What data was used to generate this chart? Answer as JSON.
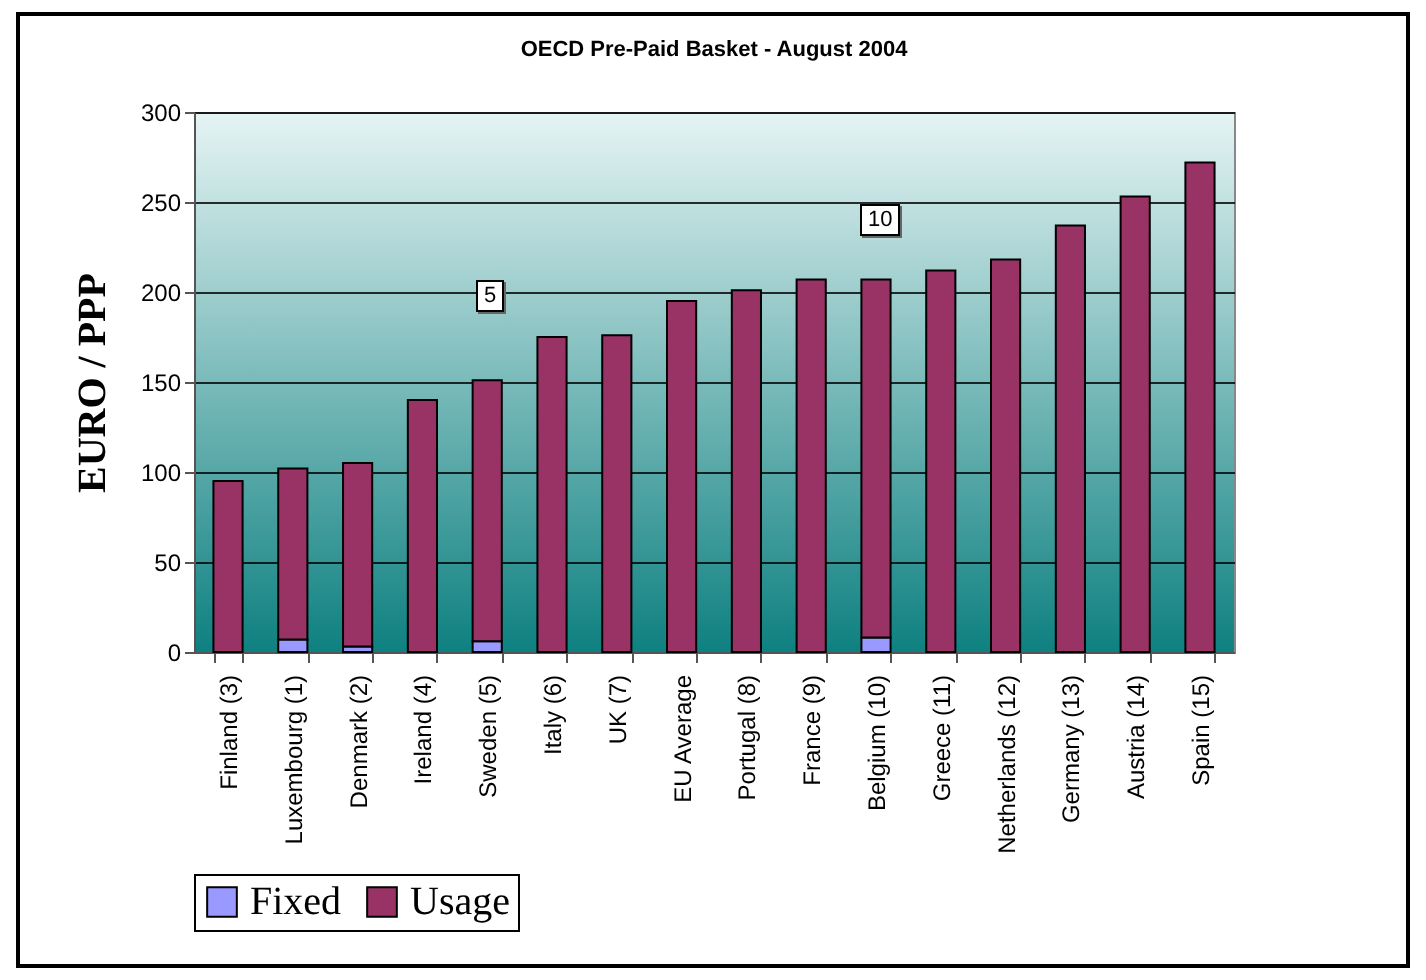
{
  "chart_data": {
    "type": "bar",
    "title": "OECD Pre-Paid Basket - August 2004",
    "ylabel": "EURO / PPP",
    "categories": [
      "Finland (3)",
      "Luxembourg (1)",
      "Denmark (2)",
      "Ireland (4)",
      "Sweden (5)",
      "Italy (6)",
      "UK (7)",
      "EU Average",
      "Portugal (8)",
      "France (9)",
      "Belgium (10)",
      "Greece (11)",
      "Netherlands (12)",
      "Germany (13)",
      "Austria (14)",
      "Spain (15)"
    ],
    "series": [
      {
        "name": "Fixed",
        "color": "#9999ff",
        "values": [
          0,
          7,
          3,
          0,
          6,
          0,
          0,
          0,
          0,
          0,
          8,
          0,
          0,
          0,
          0,
          0
        ]
      },
      {
        "name": "Usage",
        "color": "#993366",
        "values": [
          95,
          95,
          102,
          140,
          145,
          175,
          176,
          195,
          201,
          207,
          199,
          212,
          218,
          237,
          253,
          272
        ]
      }
    ],
    "stacked": true,
    "ylim": [
      0,
      300
    ],
    "yticks": [
      0,
      50,
      100,
      150,
      200,
      250,
      300
    ],
    "grid": "y",
    "legend": "bottom",
    "annotations": [
      "5",
      "10"
    ]
  }
}
